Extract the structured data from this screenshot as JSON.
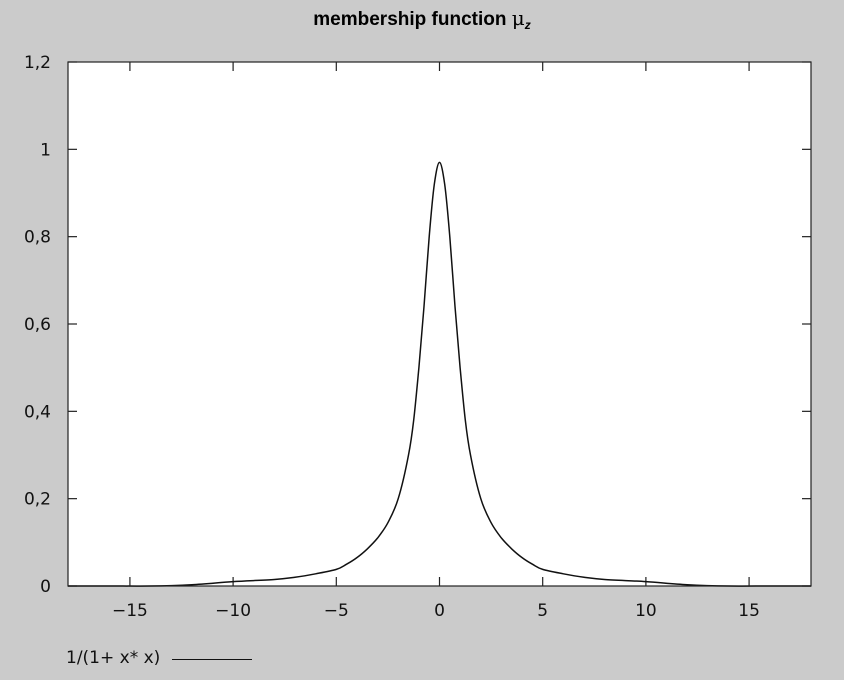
{
  "chart_data": {
    "type": "line",
    "title": "membership function",
    "title_symbol": "μ",
    "title_subscript": "z",
    "xlabel": "",
    "ylabel": "",
    "xlim": [
      -18,
      18
    ],
    "ylim": [
      0,
      1.2
    ],
    "xticks": [
      -15,
      -10,
      -5,
      0,
      5,
      10,
      15
    ],
    "xtick_labels": [
      "−15",
      "−10",
      "−5",
      "0",
      "5",
      "10",
      "15"
    ],
    "yticks": [
      0,
      0.2,
      0.4,
      0.6,
      0.8,
      1.0,
      1.2
    ],
    "ytick_labels": [
      "0",
      "0,2",
      "0,4",
      "0,6",
      "0,8",
      "1",
      "1,2"
    ],
    "grid": false,
    "legend_position": "bottom-left, below plot",
    "series": [
      {
        "name": "1/(1+ x* x)",
        "color": "#111111",
        "x": [
          -18,
          -16,
          -14,
          -12,
          -10,
          -8,
          -7,
          -6,
          -5,
          -4.5,
          -4,
          -3.5,
          -3,
          -2.5,
          -2,
          -1.5,
          -1.25,
          -1,
          -0.75,
          -0.5,
          -0.25,
          0,
          0.25,
          0.5,
          0.75,
          1,
          1.25,
          1.5,
          2,
          2.5,
          3,
          3.5,
          4,
          4.5,
          5,
          6,
          7,
          8,
          10,
          12,
          14,
          16,
          18
        ],
        "y": [
          0,
          0,
          0,
          0.003,
          0.01,
          0.015,
          0.02,
          0.028,
          0.038,
          0.05,
          0.065,
          0.085,
          0.11,
          0.145,
          0.2,
          0.3,
          0.38,
          0.5,
          0.64,
          0.8,
          0.92,
          0.97,
          0.92,
          0.8,
          0.64,
          0.5,
          0.38,
          0.3,
          0.2,
          0.145,
          0.11,
          0.085,
          0.065,
          0.05,
          0.038,
          0.028,
          0.02,
          0.015,
          0.01,
          0.003,
          0,
          0,
          0
        ]
      }
    ]
  }
}
